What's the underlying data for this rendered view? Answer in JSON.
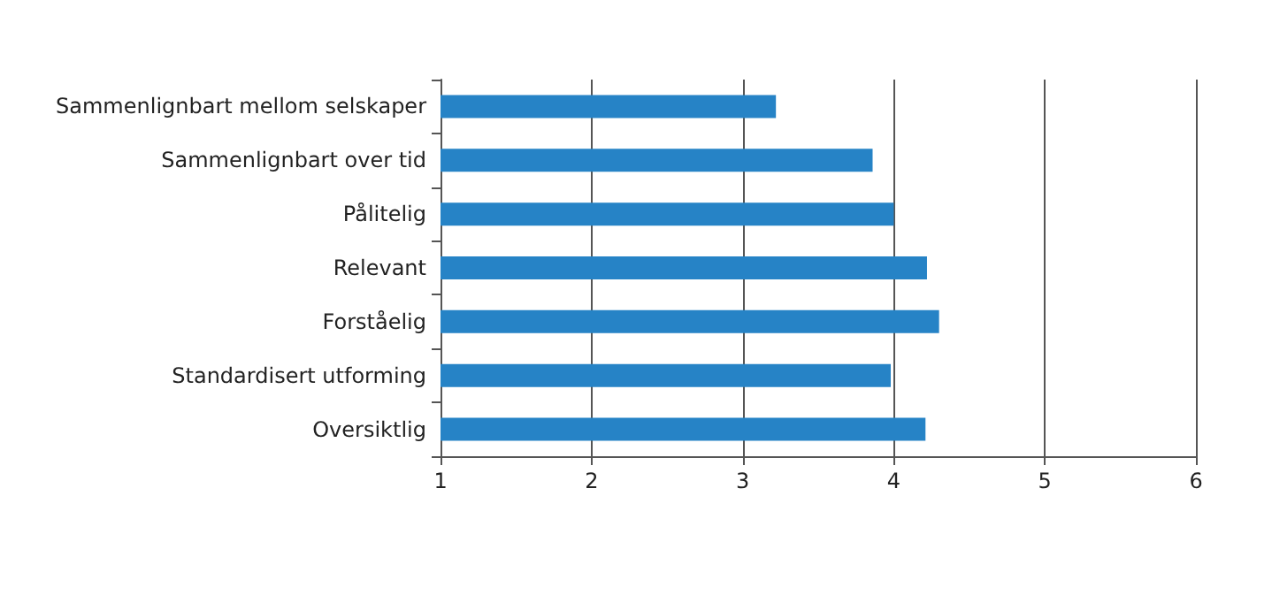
{
  "chart_data": {
    "type": "bar",
    "orientation": "horizontal",
    "categories": [
      "Sammenlignbart mellom selskaper",
      "Sammenlignbart over tid",
      "Pålitelig",
      "Relevant",
      "Forståelig",
      "Standardisert utforming",
      "Oversiktlig"
    ],
    "values": [
      3.22,
      3.86,
      4.0,
      4.22,
      4.3,
      3.98,
      4.21
    ],
    "color": "#2683c6",
    "xlim": [
      1,
      6
    ],
    "xticks": [
      1,
      2,
      3,
      4,
      5,
      6
    ],
    "grid": "x"
  }
}
